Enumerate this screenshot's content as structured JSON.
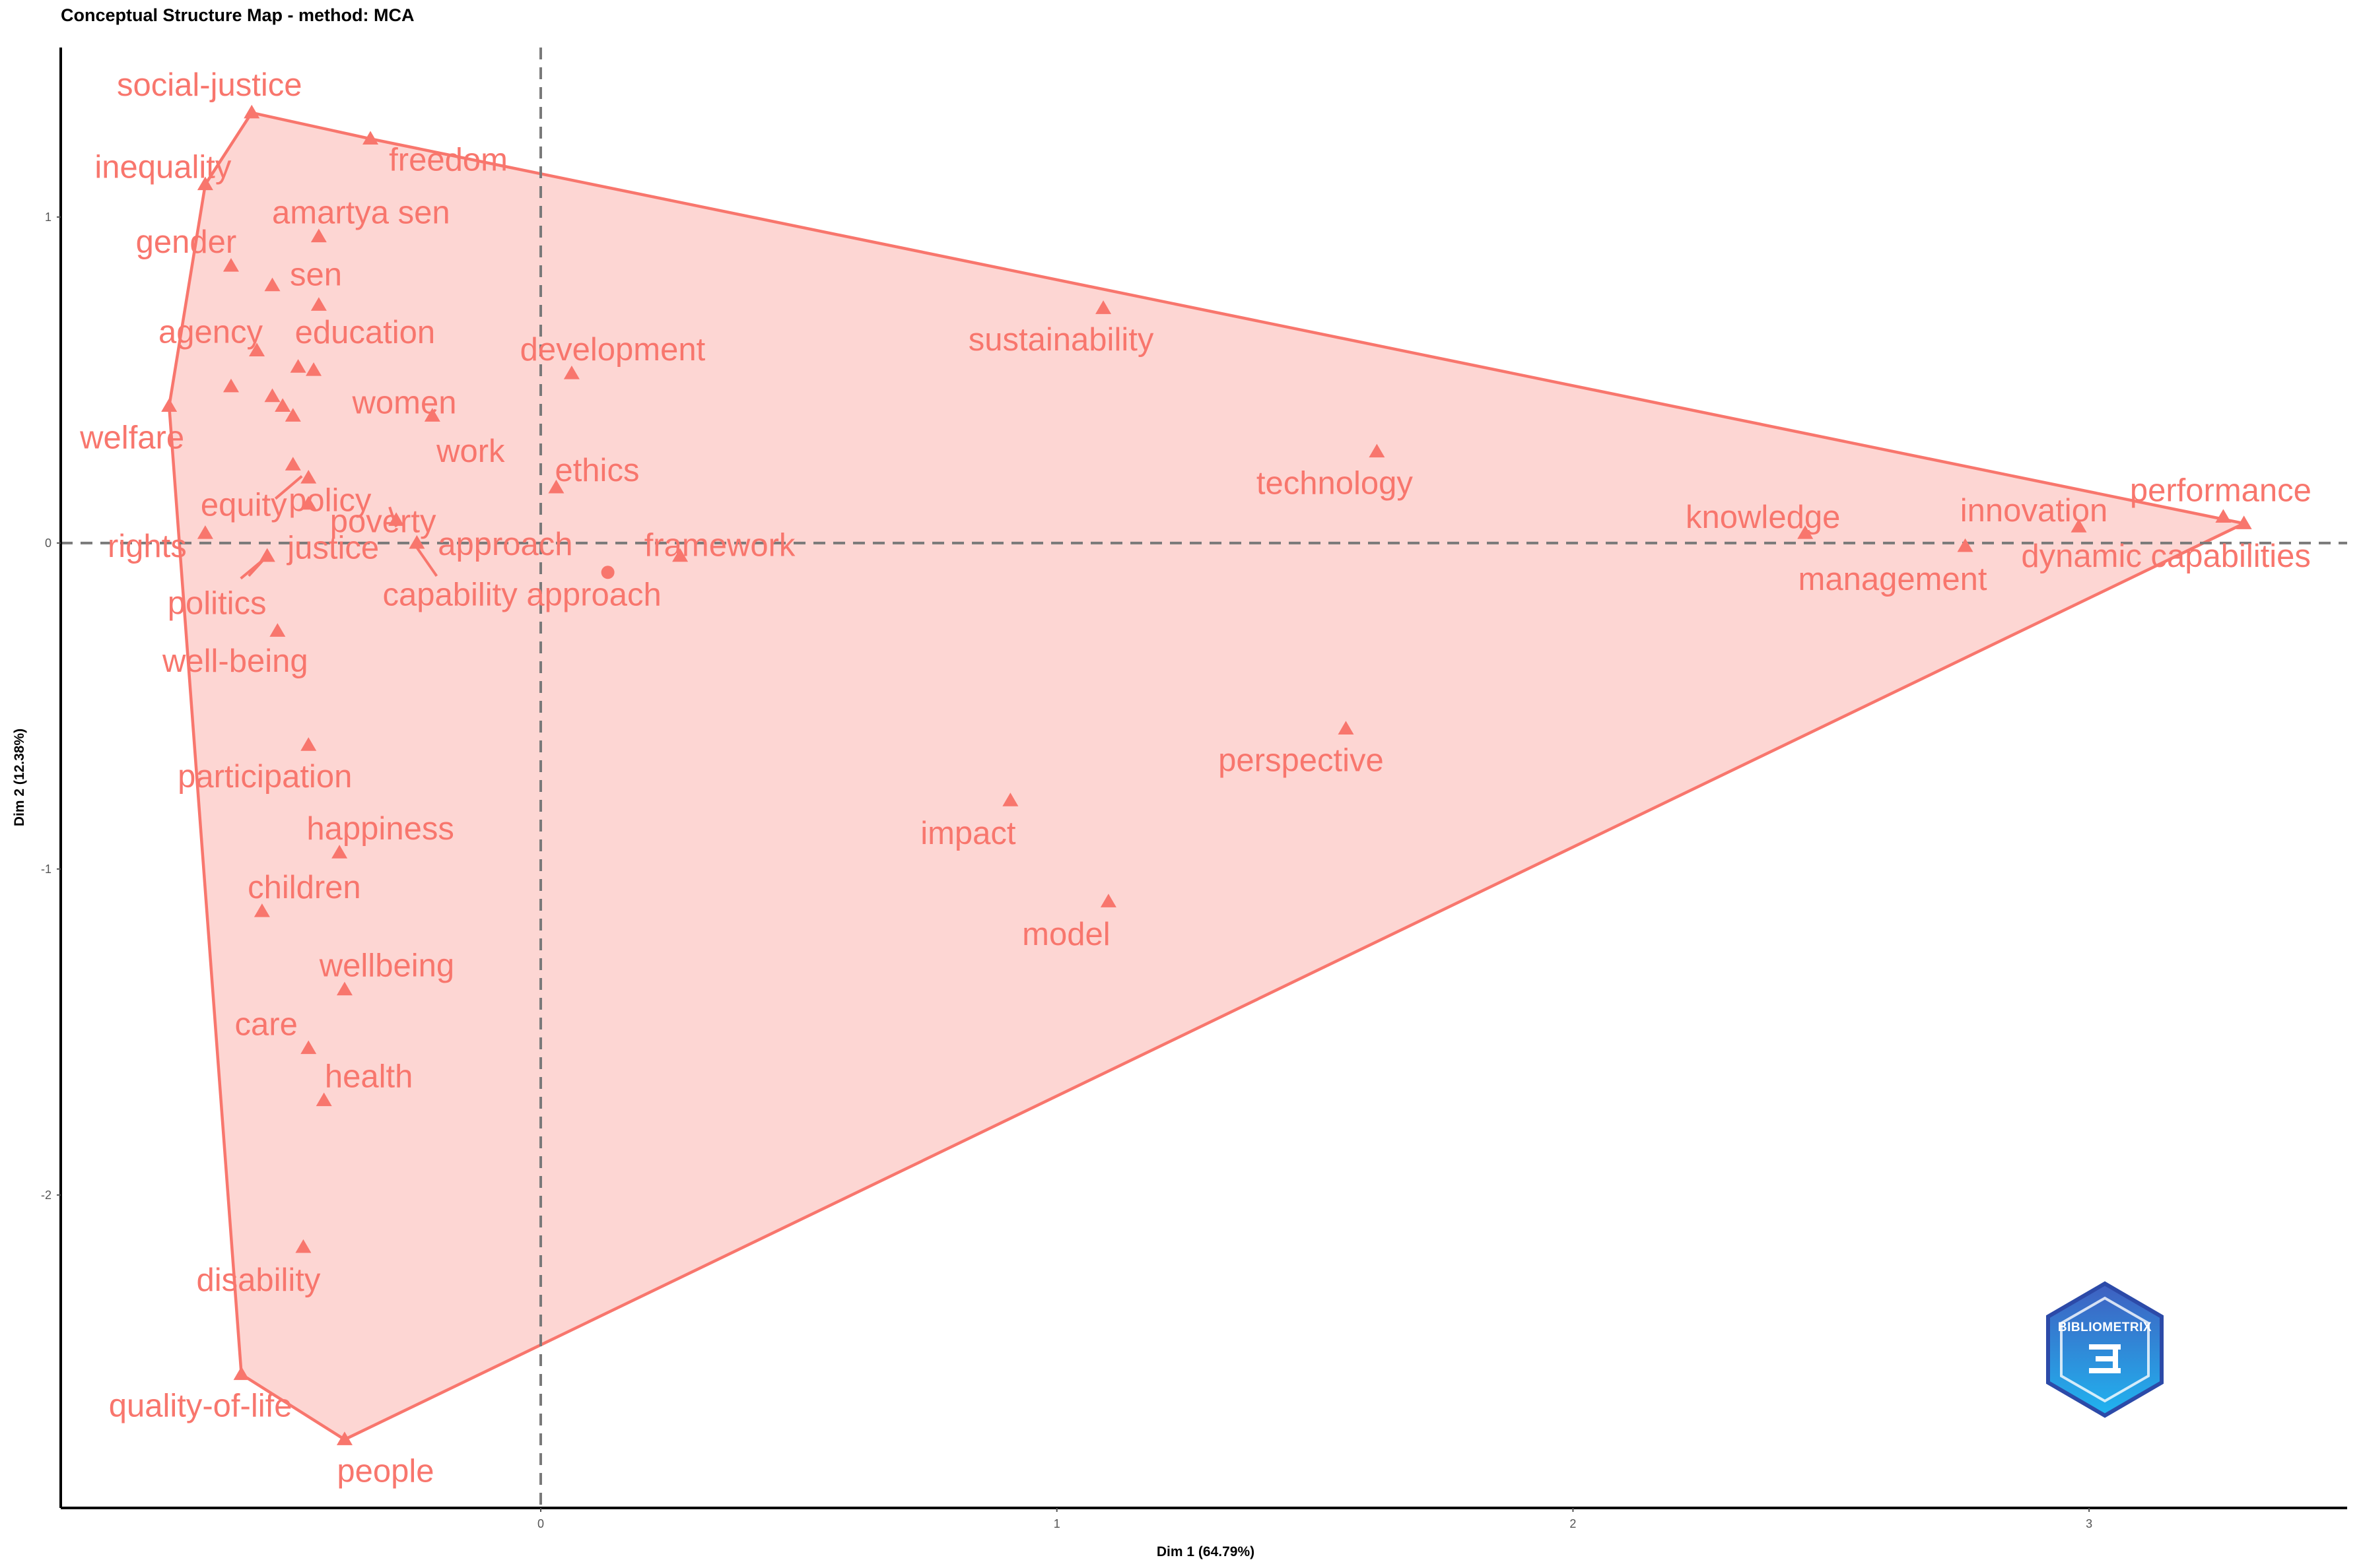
{
  "chart_data": {
    "type": "scatter",
    "title": "Conceptual Structure Map - method: MCA",
    "xlabel": "Dim 1 (64.79%)",
    "ylabel": "Dim 2 (12.38%)",
    "xlim": [
      -0.93,
      3.5
    ],
    "ylim": [
      -2.96,
      1.52
    ],
    "x_ticks": [
      0,
      1,
      2,
      3
    ],
    "y_ticks": [
      1,
      0,
      -1,
      -2
    ],
    "reference_lines": {
      "x": 0,
      "y": 0,
      "style": "dashed"
    },
    "grid": false,
    "hull": [
      [
        -0.56,
        1.32
      ],
      [
        -0.33,
        1.24
      ],
      [
        3.3,
        0.06
      ],
      [
        -0.38,
        -2.75
      ],
      [
        -0.58,
        -2.55
      ],
      [
        -0.72,
        0.42
      ],
      [
        -0.65,
        1.1
      ]
    ],
    "points": [
      {
        "label": "social-justice",
        "x": -0.56,
        "y": 1.32
      },
      {
        "label": "freedom",
        "x": -0.33,
        "y": 1.24
      },
      {
        "label": "inequality",
        "x": -0.65,
        "y": 1.1
      },
      {
        "label": "amartya sen",
        "x": -0.43,
        "y": 0.94
      },
      {
        "label": "gender",
        "x": -0.6,
        "y": 0.85
      },
      {
        "label": "sen",
        "x": -0.52,
        "y": 0.79
      },
      {
        "label": "education",
        "x": -0.43,
        "y": 0.73
      },
      {
        "label": "agency",
        "x": -0.55,
        "y": 0.59
      },
      {
        "label": "",
        "x": -0.47,
        "y": 0.54
      },
      {
        "label": "",
        "x": -0.44,
        "y": 0.53
      },
      {
        "label": "development",
        "x": 0.06,
        "y": 0.52
      },
      {
        "label": "",
        "x": -0.6,
        "y": 0.48
      },
      {
        "label": "women",
        "x": -0.52,
        "y": 0.45
      },
      {
        "label": "",
        "x": -0.5,
        "y": 0.42
      },
      {
        "label": "",
        "x": -0.48,
        "y": 0.39
      },
      {
        "label": "work",
        "x": -0.21,
        "y": 0.39
      },
      {
        "label": "welfare",
        "x": -0.72,
        "y": 0.42
      },
      {
        "label": "policy",
        "x": -0.48,
        "y": 0.24
      },
      {
        "label": "",
        "x": -0.45,
        "y": 0.2
      },
      {
        "label": "ethics",
        "x": 0.03,
        "y": 0.17
      },
      {
        "label": "equity",
        "x": -0.45,
        "y": 0.12
      },
      {
        "label": "poverty",
        "x": -0.28,
        "y": 0.07
      },
      {
        "label": "rights",
        "x": -0.65,
        "y": 0.03
      },
      {
        "label": "approach",
        "x": -0.24,
        "y": 0.0
      },
      {
        "label": "justice",
        "x": -0.53,
        "y": -0.04
      },
      {
        "label": "framework",
        "x": 0.27,
        "y": -0.04
      },
      {
        "label": "capability approach",
        "x": 0.13,
        "y": -0.09,
        "marker": "circle"
      },
      {
        "label": "politics",
        "x": -0.53,
        "y": -0.04
      },
      {
        "label": "well-being",
        "x": -0.51,
        "y": -0.27
      },
      {
        "label": "participation",
        "x": -0.45,
        "y": -0.62
      },
      {
        "label": "happiness",
        "x": -0.39,
        "y": -0.95
      },
      {
        "label": "children",
        "x": -0.54,
        "y": -1.13
      },
      {
        "label": "wellbeing",
        "x": -0.38,
        "y": -1.37
      },
      {
        "label": "care",
        "x": -0.45,
        "y": -1.55
      },
      {
        "label": "health",
        "x": -0.42,
        "y": -1.71
      },
      {
        "label": "disability",
        "x": -0.46,
        "y": -2.16
      },
      {
        "label": "quality-of-life",
        "x": -0.58,
        "y": -2.55
      },
      {
        "label": "people",
        "x": -0.38,
        "y": -2.75
      },
      {
        "label": "sustainability",
        "x": 1.09,
        "y": 0.72
      },
      {
        "label": "technology",
        "x": 1.62,
        "y": 0.28
      },
      {
        "label": "knowledge",
        "x": 2.45,
        "y": 0.03
      },
      {
        "label": "management",
        "x": 2.76,
        "y": -0.01
      },
      {
        "label": "innovation",
        "x": 2.98,
        "y": 0.05
      },
      {
        "label": "performance",
        "x": 3.26,
        "y": 0.08
      },
      {
        "label": "dynamic capabilities",
        "x": 3.3,
        "y": 0.06
      },
      {
        "label": "perspective",
        "x": 1.56,
        "y": -0.57
      },
      {
        "label": "impact",
        "x": 0.91,
        "y": -0.79
      },
      {
        "label": "model",
        "x": 1.1,
        "y": -1.1
      }
    ]
  },
  "watermark": {
    "text": "BIBLIOMETRIX",
    "icon": "bibliometrix-logo-icon",
    "colors": [
      "#3f5fc0",
      "#20b4f0"
    ]
  },
  "colors": {
    "cluster": "#F8766D",
    "axis": "#000000",
    "refline": "#7a7a7a"
  }
}
